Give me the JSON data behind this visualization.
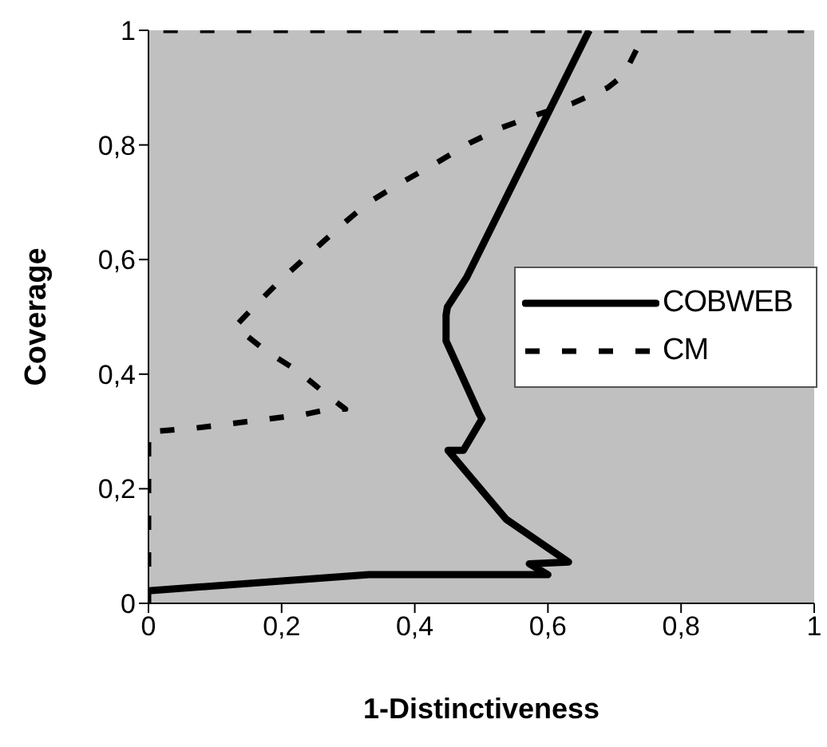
{
  "chart_data": {
    "type": "line",
    "xlabel": "1-Distinctiveness",
    "ylabel": "Coverage",
    "xlim": [
      0,
      1
    ],
    "ylim": [
      0,
      1
    ],
    "xticks": [
      0,
      {
        "value": 0.2,
        "label": "0,2"
      },
      {
        "value": 0.4,
        "label": "0,4"
      },
      {
        "value": 0.6,
        "label": "0,6"
      },
      {
        "value": 0.8,
        "label": "0,8"
      },
      1
    ],
    "yticks": [
      0,
      {
        "value": 0.2,
        "label": "0,2"
      },
      {
        "value": 0.4,
        "label": "0,4"
      },
      {
        "value": 0.6,
        "label": "0,6"
      },
      {
        "value": 0.8,
        "label": "0,8"
      },
      1
    ],
    "grid": false,
    "legend": "right",
    "marker": "none",
    "series": [
      {
        "name": "COBWEB",
        "color": "#000000",
        "line_style": "solid",
        "x": [
          0,
          0.331,
          0.6,
          0.572,
          0.631,
          0.537,
          0.45,
          0.473,
          0.501,
          0.497,
          0.447,
          0.447,
          0.449,
          0.478,
          0.662
        ],
        "values": [
          0.022,
          0.05,
          0.05,
          0.069,
          0.072,
          0.147,
          0.267,
          0.267,
          0.322,
          0.33,
          0.458,
          0.503,
          0.517,
          0.569,
          1
        ]
      },
      {
        "name": "CM",
        "color": "#000000",
        "line_style": "dashed",
        "x": [
          0,
          0,
          0.009,
          0.071,
          0.182,
          0.236,
          0.272,
          0.296,
          0.272,
          0.225,
          0.177,
          0.13,
          0.158,
          0.201,
          0.246,
          0.288,
          0.331,
          0.378,
          0.43,
          0.482,
          0.53,
          0.584,
          0.636,
          0.69,
          0.714,
          0.738,
          0.74,
          0.79,
          1,
          0
        ],
        "values": [
          0,
          0.3,
          0.3,
          0.306,
          0.322,
          0.33,
          0.339,
          0.339,
          0.36,
          0.405,
          0.44,
          0.483,
          0.517,
          0.567,
          0.614,
          0.658,
          0.7,
          0.733,
          0.767,
          0.803,
          0.83,
          0.853,
          0.872,
          0.9,
          0.922,
          0.978,
          1,
          1,
          1,
          1
        ]
      }
    ]
  }
}
